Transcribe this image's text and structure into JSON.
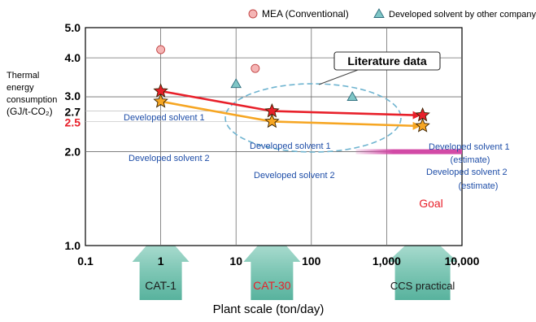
{
  "chart_data": {
    "type": "line",
    "xscale": "log",
    "yscale": "log",
    "xlim": [
      0.1,
      10000
    ],
    "ylim": [
      1.0,
      5.0
    ],
    "xlabel": "Plant scale (ton/day)",
    "ylabel": [
      "Thermal",
      "energy",
      "consumption",
      "(GJ/t-CO₂)"
    ],
    "xticks": [
      {
        "value": 0.1,
        "label": "0.1"
      },
      {
        "value": 1,
        "label": "1"
      },
      {
        "value": 10,
        "label": "10"
      },
      {
        "value": 100,
        "label": "100"
      },
      {
        "value": 1000,
        "label": "1,000"
      },
      {
        "value": 10000,
        "label": "10,000"
      }
    ],
    "yticks": [
      {
        "value": 1.0,
        "label": "1.0",
        "color": "#000000"
      },
      {
        "value": 2.0,
        "label": "2.0",
        "color": "#000000"
      },
      {
        "value": 2.5,
        "label": "2.5",
        "color": "#e8202a"
      },
      {
        "value": 2.7,
        "label": "2.7",
        "color": "#000000"
      },
      {
        "value": 3.0,
        "label": "3.0",
        "color": "#000000"
      },
      {
        "value": 4.0,
        "label": "4.0",
        "color": "#000000"
      },
      {
        "value": 5.0,
        "label": "5.0",
        "color": "#000000"
      }
    ],
    "grid": true,
    "legend_position": "top-right",
    "legend": [
      {
        "label": "MEA (Conventional)",
        "marker": "circle",
        "fill": "#f5b5b5",
        "stroke": "#c04040"
      },
      {
        "label": "Developed solvent by other company",
        "marker": "triangle",
        "fill": "#7fc6c6",
        "stroke": "#2a6a7a"
      }
    ],
    "scatter_series": [
      {
        "marker": "circle",
        "fill": "#f5b5b5",
        "stroke": "#c04040",
        "points": [
          [
            1,
            4.25
          ],
          [
            18,
            3.7
          ]
        ]
      },
      {
        "marker": "triangle",
        "fill": "#7fc6c6",
        "stroke": "#2a6a7a",
        "points": [
          [
            10,
            3.3
          ],
          [
            350,
            3.0
          ]
        ]
      }
    ],
    "series": [
      {
        "name": "Developed solvent 1",
        "color": "#e8202a",
        "points": [
          [
            1,
            3.13
          ],
          [
            30,
            2.7
          ],
          [
            3000,
            2.62
          ]
        ]
      },
      {
        "name": "Developed solvent 2",
        "color": "#f6a623",
        "points": [
          [
            1,
            2.9
          ],
          [
            30,
            2.5
          ],
          [
            3000,
            2.42
          ]
        ]
      }
    ],
    "annotations": [
      {
        "id": "literature",
        "text": "Literature data"
      },
      {
        "id": "solvent1_left",
        "text": "Developed solvent 1",
        "color": "#1f4ea8"
      },
      {
        "id": "solvent2_left",
        "text": "Developed solvent 2",
        "color": "#1f4ea8"
      },
      {
        "id": "solvent1_mid",
        "text": "Developed solvent 1",
        "color": "#1f4ea8"
      },
      {
        "id": "solvent2_mid",
        "text": "Developed solvent 2",
        "color": "#1f4ea8"
      },
      {
        "id": "solvent1_est",
        "text": "Developed solvent 1",
        "color": "#1f4ea8"
      },
      {
        "id": "solvent1_est2",
        "text": "(estimate)",
        "color": "#1f4ea8"
      },
      {
        "id": "solvent2_est",
        "text": "Developed solvent 2",
        "color": "#1f4ea8"
      },
      {
        "id": "solvent2_est2",
        "text": "(estimate)",
        "color": "#1f4ea8"
      },
      {
        "id": "goal",
        "text": "Goal",
        "color": "#e8202a"
      }
    ],
    "stage_arrows": [
      {
        "label": "CAT-1",
        "x": 1,
        "color": "#1a1a1a"
      },
      {
        "label": "CAT-30",
        "x": 30,
        "color": "#e8202a"
      },
      {
        "label": "CCS practical",
        "x": 3000,
        "color": "#1a1a1a"
      }
    ],
    "goal": {
      "y": 2.0,
      "x_from": 500,
      "x_to": 10000,
      "color": "#d24aa6"
    }
  }
}
